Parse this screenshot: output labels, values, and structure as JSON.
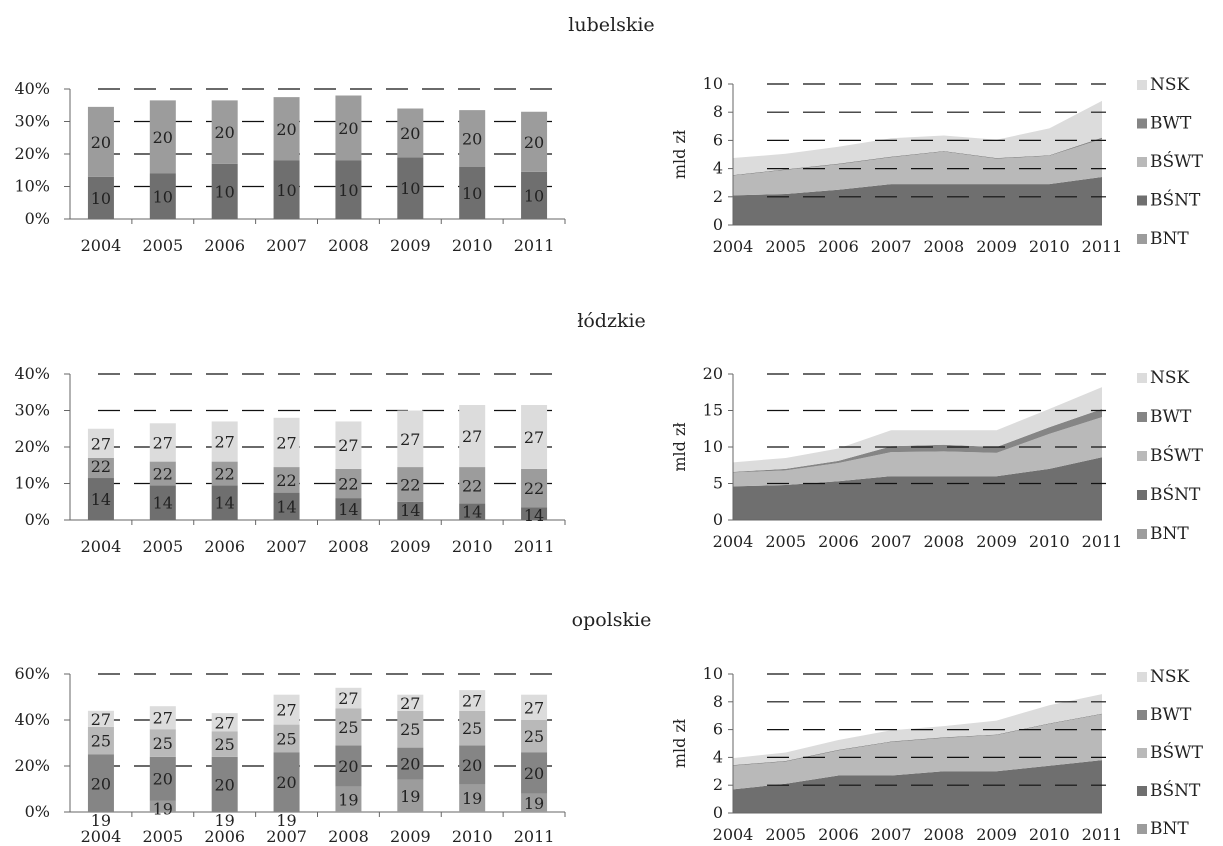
{
  "colors": {
    "BNT": "#9c9c9c",
    "BŚNT": "#6f6f6f",
    "BŚWT": "#b9b9b9",
    "BWT": "#858585",
    "NSK": "#dcdcdc",
    "grid": "#111111"
  },
  "years": [
    "2004",
    "2005",
    "2006",
    "2007",
    "2008",
    "2009",
    "2010",
    "2011"
  ],
  "panels": [
    {
      "title": "lubelskie",
      "bar": {
        "type": "bar",
        "yticks": [
          "0%",
          "10%",
          "20%",
          "30%",
          "40%"
        ],
        "ylim": [
          0,
          40
        ],
        "segments": [
          {
            "key": "BŚNT",
            "label": "10",
            "values": [
              13,
              14,
              17,
              18,
              18,
              19,
              16,
              14.5
            ]
          },
          {
            "key": "BNT",
            "label": "20",
            "values": [
              21.5,
              22.5,
              19.5,
              19.5,
              20,
              15,
              17.5,
              18.5
            ]
          }
        ]
      },
      "area": {
        "type": "area",
        "ylabel": "mld zł",
        "yticks": [
          "0",
          "2",
          "4",
          "6",
          "8",
          "10"
        ],
        "ylim": [
          0,
          10
        ],
        "series": [
          {
            "key": "BŚNT",
            "values": [
              2.1,
              2.2,
              2.5,
              2.9,
              2.9,
              2.9,
              2.9,
              3.4
            ]
          },
          {
            "key": "BŚWT",
            "values": [
              1.4,
              1.7,
              1.8,
              1.9,
              2.3,
              1.8,
              2.0,
              2.7
            ]
          },
          {
            "key": "BWT",
            "values": [
              0.05,
              0.05,
              0.05,
              0.05,
              0.05,
              0.05,
              0.05,
              0.1
            ]
          },
          {
            "key": "NSK",
            "values": [
              1.2,
              1.1,
              1.2,
              1.3,
              1.1,
              1.3,
              1.9,
              2.6
            ]
          }
        ]
      }
    },
    {
      "title": "łódzkie",
      "bar": {
        "type": "bar",
        "yticks": [
          "0%",
          "10%",
          "20%",
          "30%",
          "40%"
        ],
        "ylim": [
          0,
          40
        ],
        "segments": [
          {
            "key": "BŚNT",
            "label": "14",
            "values": [
              11.5,
              9.5,
              9.5,
              7.5,
              6,
              5,
              4.5,
              3.5
            ]
          },
          {
            "key": "BNT",
            "label": "22",
            "values": [
              5.5,
              6.5,
              6.5,
              7,
              8,
              9.5,
              10,
              10.5
            ]
          },
          {
            "key": "NSK",
            "label": "27",
            "values": [
              8,
              10.5,
              11,
              13.5,
              13,
              15.5,
              17,
              17.5
            ]
          }
        ]
      },
      "area": {
        "type": "area",
        "ylabel": "mld zł",
        "yticks": [
          "0",
          "5",
          "10",
          "15",
          "20"
        ],
        "ylim": [
          0,
          20
        ],
        "series": [
          {
            "key": "BŚNT",
            "values": [
              4.6,
              4.8,
              5.3,
              6.0,
              6.0,
              6.0,
              7.0,
              8.6
            ]
          },
          {
            "key": "BŚWT",
            "values": [
              1.9,
              2.0,
              2.5,
              3.3,
              3.4,
              3.2,
              4.8,
              5.5
            ]
          },
          {
            "key": "BWT",
            "values": [
              0.1,
              0.2,
              0.3,
              0.8,
              0.9,
              0.8,
              0.9,
              1.1
            ]
          },
          {
            "key": "NSK",
            "values": [
              1.3,
              1.5,
              1.7,
              2.2,
              2.0,
              2.3,
              2.5,
              3.0
            ]
          }
        ]
      }
    },
    {
      "title": "opolskie",
      "bar": {
        "type": "bar",
        "yticks": [
          "0%",
          "20%",
          "40%",
          "60%"
        ],
        "ylim": [
          0,
          60
        ],
        "segments": [
          {
            "key": "BNT",
            "label": "19",
            "values": [
              0,
              5,
              0,
              0,
              11,
              14,
              12,
              8
            ]
          },
          {
            "key": "BWT",
            "label": "20",
            "values": [
              25,
              19,
              24,
              26,
              18,
              14,
              17,
              18
            ]
          },
          {
            "key": "BŚWT",
            "label": "25",
            "values": [
              12,
              12,
              11,
              12,
              16,
              16,
              15,
              14
            ]
          },
          {
            "key": "NSK",
            "label": "27",
            "values": [
              7,
              10,
              8,
              13,
              9,
              7,
              9,
              11
            ]
          }
        ]
      },
      "area": {
        "type": "area",
        "ylabel": "mld zł",
        "yticks": [
          "0",
          "2",
          "4",
          "6",
          "8",
          "10"
        ],
        "ylim": [
          0,
          10
        ],
        "series": [
          {
            "key": "BŚNT",
            "values": [
              1.7,
              2.1,
              2.7,
              2.7,
              3.0,
              3.0,
              3.4,
              3.8
            ]
          },
          {
            "key": "BŚWT",
            "values": [
              1.7,
              1.6,
              1.8,
              2.4,
              2.4,
              2.6,
              3.0,
              3.3
            ]
          },
          {
            "key": "BWT",
            "values": [
              0.05,
              0.05,
              0.05,
              0.05,
              0.05,
              0.05,
              0.05,
              0.05
            ]
          },
          {
            "key": "NSK",
            "values": [
              0.5,
              0.6,
              0.7,
              0.8,
              0.8,
              1.0,
              1.3,
              1.4
            ]
          }
        ]
      }
    }
  ],
  "legend": [
    "NSK",
    "BWT",
    "BŚWT",
    "BŚNT",
    "BNT"
  ],
  "chart_data": [
    {
      "type": "bar",
      "title": "lubelskie",
      "categories": [
        "2004",
        "2005",
        "2006",
        "2007",
        "2008",
        "2009",
        "2010",
        "2011"
      ],
      "series": [
        {
          "name": "10",
          "values": [
            13,
            14,
            17,
            18,
            18,
            19,
            16,
            14.5
          ]
        },
        {
          "name": "20",
          "values": [
            21.5,
            22.5,
            19.5,
            19.5,
            20,
            15,
            17.5,
            18.5
          ]
        }
      ],
      "ylim": [
        0,
        40
      ]
    },
    {
      "type": "area",
      "title": "lubelskie",
      "ylabel": "mld zł",
      "categories": [
        "2004",
        "2005",
        "2006",
        "2007",
        "2008",
        "2009",
        "2010",
        "2011"
      ],
      "series": [
        {
          "name": "BŚNT",
          "values": [
            2.1,
            2.2,
            2.5,
            2.9,
            2.9,
            2.9,
            2.9,
            3.4
          ]
        },
        {
          "name": "BŚWT",
          "values": [
            1.4,
            1.7,
            1.8,
            1.9,
            2.3,
            1.8,
            2.0,
            2.7
          ]
        },
        {
          "name": "BWT",
          "values": [
            0.05,
            0.05,
            0.05,
            0.05,
            0.05,
            0.05,
            0.05,
            0.1
          ]
        },
        {
          "name": "NSK",
          "values": [
            1.2,
            1.1,
            1.2,
            1.3,
            1.1,
            1.3,
            1.9,
            2.6
          ]
        }
      ],
      "ylim": [
        0,
        10
      ]
    },
    {
      "type": "bar",
      "title": "łódzkie",
      "categories": [
        "2004",
        "2005",
        "2006",
        "2007",
        "2008",
        "2009",
        "2010",
        "2011"
      ],
      "series": [
        {
          "name": "14",
          "values": [
            11.5,
            9.5,
            9.5,
            7.5,
            6,
            5,
            4.5,
            3.5
          ]
        },
        {
          "name": "22",
          "values": [
            5.5,
            6.5,
            6.5,
            7,
            8,
            9.5,
            10,
            10.5
          ]
        },
        {
          "name": "27",
          "values": [
            8,
            10.5,
            11,
            13.5,
            13,
            15.5,
            17,
            17.5
          ]
        }
      ],
      "ylim": [
        0,
        40
      ]
    },
    {
      "type": "area",
      "title": "łódzkie",
      "ylabel": "mld zł",
      "categories": [
        "2004",
        "2005",
        "2006",
        "2007",
        "2008",
        "2009",
        "2010",
        "2011"
      ],
      "series": [
        {
          "name": "BŚNT",
          "values": [
            4.6,
            4.8,
            5.3,
            6.0,
            6.0,
            6.0,
            7.0,
            8.6
          ]
        },
        {
          "name": "BŚWT",
          "values": [
            1.9,
            2.0,
            2.5,
            3.3,
            3.4,
            3.2,
            4.8,
            5.5
          ]
        },
        {
          "name": "BWT",
          "values": [
            0.1,
            0.2,
            0.3,
            0.8,
            0.9,
            0.8,
            0.9,
            1.1
          ]
        },
        {
          "name": "NSK",
          "values": [
            1.3,
            1.5,
            1.7,
            2.2,
            2.0,
            2.3,
            2.5,
            3.0
          ]
        }
      ],
      "ylim": [
        0,
        20
      ]
    },
    {
      "type": "bar",
      "title": "opolskie",
      "categories": [
        "2004",
        "2005",
        "2006",
        "2007",
        "2008",
        "2009",
        "2010",
        "2011"
      ],
      "series": [
        {
          "name": "19",
          "values": [
            0,
            5,
            0,
            0,
            11,
            14,
            12,
            8
          ]
        },
        {
          "name": "20",
          "values": [
            25,
            19,
            24,
            26,
            18,
            14,
            17,
            18
          ]
        },
        {
          "name": "25",
          "values": [
            12,
            12,
            11,
            12,
            16,
            16,
            15,
            14
          ]
        },
        {
          "name": "27",
          "values": [
            7,
            10,
            8,
            13,
            9,
            7,
            9,
            11
          ]
        }
      ],
      "ylim": [
        0,
        60
      ]
    },
    {
      "type": "area",
      "title": "opolskie",
      "ylabel": "mld zł",
      "categories": [
        "2004",
        "2005",
        "2006",
        "2007",
        "2008",
        "2009",
        "2010",
        "2011"
      ],
      "series": [
        {
          "name": "BŚNT",
          "values": [
            1.7,
            2.1,
            2.7,
            2.7,
            3.0,
            3.0,
            3.4,
            3.8
          ]
        },
        {
          "name": "BŚWT",
          "values": [
            1.7,
            1.6,
            1.8,
            2.4,
            2.4,
            2.6,
            3.0,
            3.3
          ]
        },
        {
          "name": "BWT",
          "values": [
            0.05,
            0.05,
            0.05,
            0.05,
            0.05,
            0.05,
            0.05,
            0.05
          ]
        },
        {
          "name": "NSK",
          "values": [
            0.5,
            0.6,
            0.7,
            0.8,
            0.8,
            1.0,
            1.3,
            1.4
          ]
        }
      ],
      "ylim": [
        0,
        10
      ]
    }
  ]
}
